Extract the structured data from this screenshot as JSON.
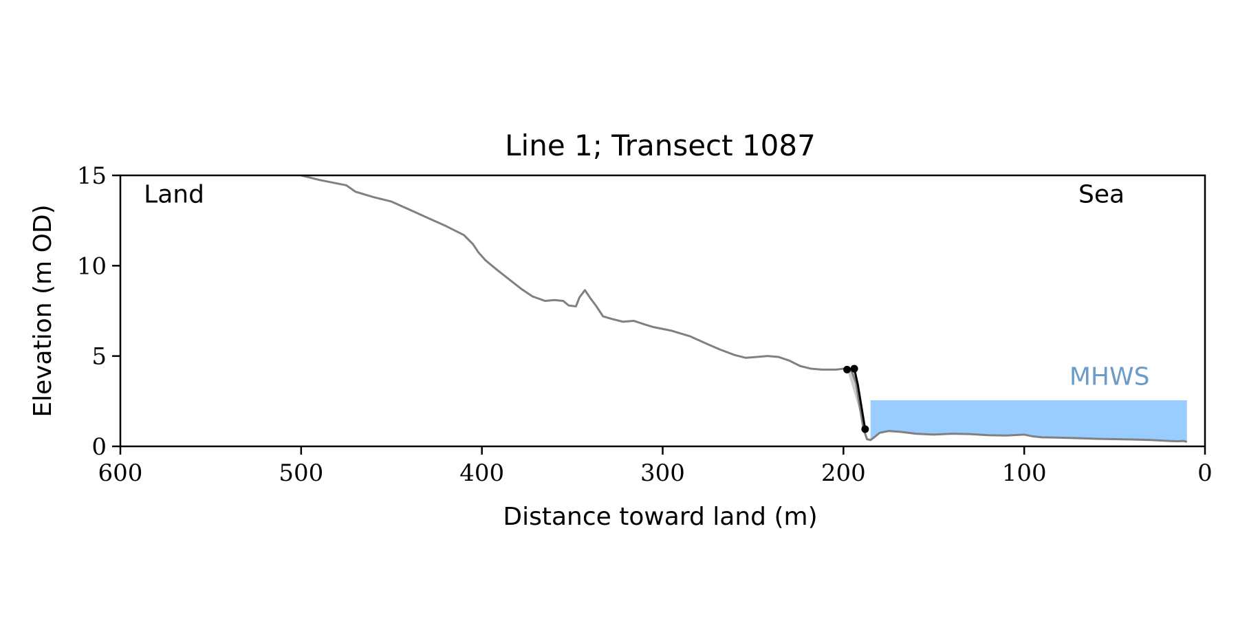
{
  "chart_data": {
    "type": "line",
    "title": "Line 1; Transect 1087",
    "xlabel": "Distance toward land (m)",
    "ylabel": "Elevation (m OD)",
    "xlim": [
      600,
      0
    ],
    "ylim": [
      0,
      15
    ],
    "x_ticks": [
      600,
      500,
      400,
      300,
      200,
      100,
      0
    ],
    "y_ticks": [
      0,
      5,
      10,
      15
    ],
    "grid": false,
    "annotations": [
      {
        "text": "Land",
        "x": 587,
        "y": 13.5,
        "color": "#000000"
      },
      {
        "text": "Sea",
        "x": 70,
        "y": 13.5,
        "color": "#000000"
      },
      {
        "text": "MHWS",
        "x": 75,
        "y": 3.4,
        "color": "#6b9bc9"
      }
    ],
    "mhws": {
      "x_start": 185,
      "x_end": 10,
      "level": 2.55,
      "color": "#99ccff"
    },
    "profile": {
      "color": "#808080",
      "x": [
        500,
        490,
        480,
        475,
        470,
        460,
        450,
        440,
        430,
        420,
        410,
        405,
        402,
        398,
        392,
        385,
        378,
        372,
        365,
        360,
        355,
        352,
        348,
        346,
        343,
        340,
        337,
        333,
        328,
        322,
        316,
        310,
        305,
        295,
        285,
        275,
        268,
        260,
        254,
        248,
        242,
        236,
        230,
        224,
        218,
        212,
        204,
        200,
        196,
        193,
        191,
        189,
        187,
        185,
        183,
        180,
        175,
        168,
        160,
        150,
        140,
        130,
        120,
        110,
        100,
        95,
        90,
        80,
        70,
        60,
        50,
        40,
        30,
        20,
        15,
        12,
        10
      ],
      "y": [
        15.0,
        14.75,
        14.55,
        14.45,
        14.1,
        13.8,
        13.55,
        13.1,
        12.65,
        12.2,
        11.7,
        11.2,
        10.75,
        10.3,
        9.8,
        9.25,
        8.7,
        8.3,
        8.05,
        8.1,
        8.05,
        7.8,
        7.75,
        8.25,
        8.65,
        8.2,
        7.8,
        7.2,
        7.05,
        6.9,
        6.95,
        6.75,
        6.6,
        6.4,
        6.1,
        5.65,
        5.35,
        5.05,
        4.9,
        4.95,
        5.0,
        4.95,
        4.75,
        4.45,
        4.3,
        4.25,
        4.25,
        4.3,
        4.3,
        3.5,
        2.2,
        1.0,
        0.4,
        0.35,
        0.5,
        0.75,
        0.85,
        0.8,
        0.7,
        0.65,
        0.7,
        0.68,
        0.62,
        0.6,
        0.65,
        0.55,
        0.5,
        0.48,
        0.45,
        0.42,
        0.4,
        0.38,
        0.35,
        0.3,
        0.28,
        0.3,
        0.25
      ]
    },
    "cliff": {
      "color": "#000000",
      "x": [
        198,
        194,
        192,
        188
      ],
      "y": [
        4.25,
        4.3,
        3.4,
        0.95
      ],
      "marker_x": [
        198,
        194,
        188
      ],
      "marker_y": [
        4.25,
        4.3,
        0.95
      ],
      "fill_color": "#cccccc"
    }
  }
}
